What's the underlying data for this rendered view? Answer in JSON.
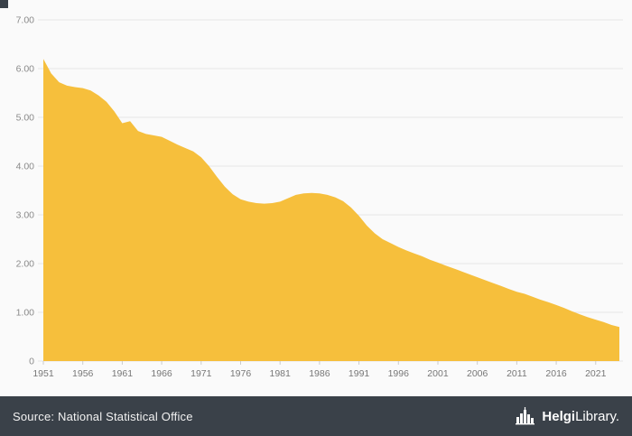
{
  "chart_data": {
    "type": "area",
    "title": "",
    "xlabel": "",
    "ylabel": "",
    "ylim": [
      0,
      7
    ],
    "area_color": "#f6bf3c",
    "grid_color": "#e6e6e6",
    "tick_color": "#cccccc",
    "label_color": "#8a8a8a",
    "background": "#fafafa",
    "yticks": [
      {
        "value": 0,
        "label": "0"
      },
      {
        "value": 1,
        "label": "1.00"
      },
      {
        "value": 2,
        "label": "2.00"
      },
      {
        "value": 3,
        "label": "3.00"
      },
      {
        "value": 4,
        "label": "4.00"
      },
      {
        "value": 5,
        "label": "5.00"
      },
      {
        "value": 6,
        "label": "6.00"
      },
      {
        "value": 7,
        "label": "7.00"
      }
    ],
    "xticks": [
      1951,
      1956,
      1961,
      1966,
      1971,
      1976,
      1981,
      1986,
      1991,
      1996,
      2001,
      2006,
      2011,
      2016,
      2021
    ],
    "x": [
      1951,
      1952,
      1953,
      1954,
      1955,
      1956,
      1957,
      1958,
      1959,
      1960,
      1961,
      1962,
      1963,
      1964,
      1965,
      1966,
      1967,
      1968,
      1969,
      1970,
      1971,
      1972,
      1973,
      1974,
      1975,
      1976,
      1977,
      1978,
      1979,
      1980,
      1981,
      1982,
      1983,
      1984,
      1985,
      1986,
      1987,
      1988,
      1989,
      1990,
      1991,
      1992,
      1993,
      1994,
      1995,
      1996,
      1997,
      1998,
      1999,
      2000,
      2001,
      2002,
      2003,
      2004,
      2005,
      2006,
      2007,
      2008,
      2009,
      2010,
      2011,
      2012,
      2013,
      2014,
      2015,
      2016,
      2017,
      2018,
      2019,
      2020,
      2021,
      2022,
      2023,
      2024
    ],
    "values": [
      6.2,
      5.9,
      5.72,
      5.65,
      5.62,
      5.6,
      5.55,
      5.45,
      5.32,
      5.12,
      4.88,
      4.92,
      4.72,
      4.66,
      4.63,
      4.6,
      4.52,
      4.44,
      4.37,
      4.3,
      4.18,
      4.0,
      3.78,
      3.58,
      3.42,
      3.32,
      3.27,
      3.24,
      3.23,
      3.24,
      3.27,
      3.34,
      3.41,
      3.44,
      3.45,
      3.44,
      3.41,
      3.36,
      3.28,
      3.15,
      2.98,
      2.78,
      2.62,
      2.5,
      2.42,
      2.34,
      2.27,
      2.21,
      2.15,
      2.08,
      2.02,
      1.96,
      1.9,
      1.84,
      1.78,
      1.72,
      1.66,
      1.6,
      1.54,
      1.48,
      1.42,
      1.38,
      1.32,
      1.26,
      1.21,
      1.15,
      1.09,
      1.02,
      0.96,
      0.9,
      0.85,
      0.8,
      0.74,
      0.7
    ]
  },
  "footer": {
    "source_label": "Source: National Statistical Office",
    "brand_bold": "Helgi",
    "brand_rest": "Library."
  }
}
